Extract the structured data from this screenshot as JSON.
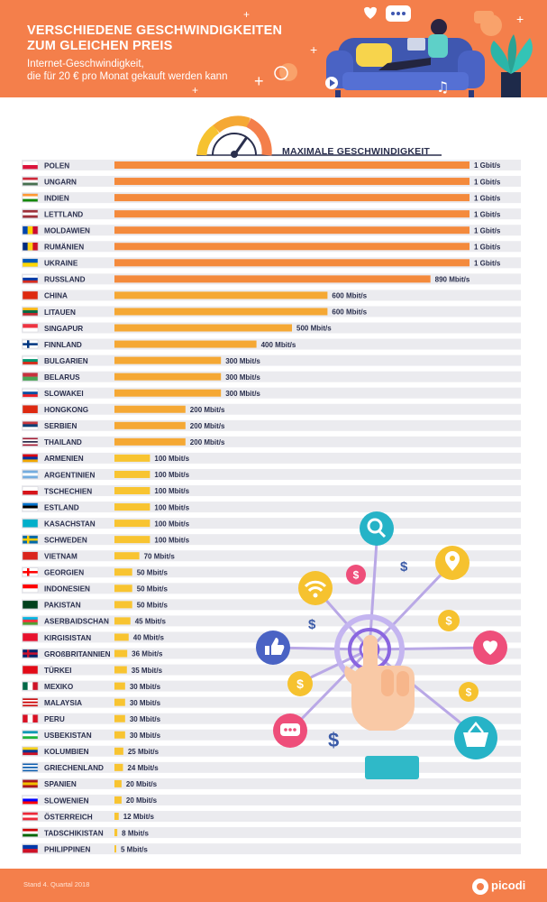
{
  "header": {
    "title_line1": "VERSCHIEDENE GESCHWINDIGKEITEN",
    "title_line2": "ZUM GLEICHEN PREIS",
    "subtitle_line1": "Internet-Geschwindigkeit,",
    "subtitle_line2": "die für 20 € pro Monat gekauft werden kann"
  },
  "colors": {
    "header_bg": "#f47f4b",
    "bar_orange": "#f48a3c",
    "bar_mid": "#f5a834",
    "bar_yellow": "#f8c431",
    "row_bg": "#ebebef"
  },
  "chart_data": {
    "type": "bar",
    "orientation": "horizontal",
    "title": "MAXIMALE GESCHWINDIGKEIT",
    "unit": "Mbit/s",
    "xlim": [
      0,
      1000
    ],
    "rows": [
      {
        "country": "POLEN",
        "value": 1000,
        "label": "1 Gbit/s",
        "flag": [
          "#ffffff",
          "#dc143c"
        ]
      },
      {
        "country": "UNGARN",
        "value": 1000,
        "label": "1 Gbit/s",
        "flag": [
          "#ce2939",
          "#ffffff",
          "#477050"
        ]
      },
      {
        "country": "INDIEN",
        "value": 1000,
        "label": "1 Gbit/s",
        "flag": [
          "#ff9933",
          "#ffffff",
          "#138808"
        ]
      },
      {
        "country": "LETTLAND",
        "value": 1000,
        "label": "1 Gbit/s",
        "flag": [
          "#9e3039",
          "#ffffff",
          "#9e3039"
        ]
      },
      {
        "country": "MOLDAWIEN",
        "value": 1000,
        "label": "1 Gbit/s",
        "flag": [
          "#0046ae",
          "#ffd200",
          "#cc092f"
        ],
        "vertical": true
      },
      {
        "country": "RUMÄNIEN",
        "value": 1000,
        "label": "1 Gbit/s",
        "flag": [
          "#002b7f",
          "#fcd116",
          "#ce1126"
        ],
        "vertical": true
      },
      {
        "country": "UKRAINE",
        "value": 1000,
        "label": "1 Gbit/s",
        "flag": [
          "#0057b7",
          "#ffd700"
        ]
      },
      {
        "country": "RUSSLAND",
        "value": 890,
        "label": "890 Mbit/s",
        "flag": [
          "#ffffff",
          "#0039a6",
          "#d52b1e"
        ]
      },
      {
        "country": "CHINA",
        "value": 600,
        "label": "600 Mbit/s",
        "flag": [
          "#de2910"
        ]
      },
      {
        "country": "LITAUEN",
        "value": 600,
        "label": "600 Mbit/s",
        "flag": [
          "#fdb913",
          "#006a44",
          "#c1272d"
        ]
      },
      {
        "country": "SINGAPUR",
        "value": 500,
        "label": "500 Mbit/s",
        "flag": [
          "#ef3340",
          "#ffffff"
        ]
      },
      {
        "country": "FINNLAND",
        "value": 400,
        "label": "400 Mbit/s",
        "flag": [
          "#ffffff"
        ],
        "cross": "#003580"
      },
      {
        "country": "BULGARIEN",
        "value": 300,
        "label": "300 Mbit/s",
        "flag": [
          "#ffffff",
          "#00966e",
          "#d62612"
        ]
      },
      {
        "country": "BELARUS",
        "value": 300,
        "label": "300 Mbit/s",
        "flag": [
          "#c8313e",
          "#4aa657"
        ]
      },
      {
        "country": "SLOWAKEI",
        "value": 300,
        "label": "300 Mbit/s",
        "flag": [
          "#ffffff",
          "#0b4ea2",
          "#ee1c25"
        ]
      },
      {
        "country": "HONGKONG",
        "value": 200,
        "label": "200 Mbit/s",
        "flag": [
          "#de2910"
        ]
      },
      {
        "country": "SERBIEN",
        "value": 200,
        "label": "200 Mbit/s",
        "flag": [
          "#c6363c",
          "#0c4076",
          "#ffffff"
        ]
      },
      {
        "country": "THAILAND",
        "value": 200,
        "label": "200 Mbit/s",
        "flag": [
          "#a51931",
          "#ffffff",
          "#2d2a4a",
          "#ffffff",
          "#a51931"
        ]
      },
      {
        "country": "ARMENIEN",
        "value": 100,
        "label": "100 Mbit/s",
        "flag": [
          "#d90012",
          "#0033a0",
          "#f2a800"
        ]
      },
      {
        "country": "ARGENTINIEN",
        "value": 100,
        "label": "100 Mbit/s",
        "flag": [
          "#74acdf",
          "#ffffff",
          "#74acdf"
        ]
      },
      {
        "country": "TSCHECHIEN",
        "value": 100,
        "label": "100 Mbit/s",
        "flag": [
          "#ffffff",
          "#d7141a"
        ]
      },
      {
        "country": "ESTLAND",
        "value": 100,
        "label": "100 Mbit/s",
        "flag": [
          "#0072ce",
          "#000000",
          "#ffffff"
        ]
      },
      {
        "country": "KASACHSTAN",
        "value": 100,
        "label": "100 Mbit/s",
        "flag": [
          "#00afca"
        ]
      },
      {
        "country": "SCHWEDEN",
        "value": 100,
        "label": "100 Mbit/s",
        "flag": [
          "#006aa7"
        ],
        "cross": "#fecc00"
      },
      {
        "country": "VIETNAM",
        "value": 70,
        "label": "70 Mbit/s",
        "flag": [
          "#da251d"
        ]
      },
      {
        "country": "GEORGIEN",
        "value": 50,
        "label": "50 Mbit/s",
        "flag": [
          "#ffffff"
        ],
        "cross": "#ff0000"
      },
      {
        "country": "INDONESIEN",
        "value": 50,
        "label": "50 Mbit/s",
        "flag": [
          "#ff0000",
          "#ffffff"
        ]
      },
      {
        "country": "PAKISTAN",
        "value": 50,
        "label": "50 Mbit/s",
        "flag": [
          "#01411c"
        ]
      },
      {
        "country": "ASERBAIDSCHAN",
        "value": 45,
        "label": "45 Mbit/s",
        "flag": [
          "#00b5e2",
          "#ef3340",
          "#509e2f"
        ]
      },
      {
        "country": "KIRGISISTAN",
        "value": 40,
        "label": "40 Mbit/s",
        "flag": [
          "#e8112d"
        ]
      },
      {
        "country": "GROßBRITANNIEN",
        "value": 36,
        "label": "36 Mbit/s",
        "flag": [
          "#012169"
        ],
        "cross": "#c8102e"
      },
      {
        "country": "TÜRKEI",
        "value": 35,
        "label": "35 Mbit/s",
        "flag": [
          "#e30a17"
        ]
      },
      {
        "country": "MEXIKO",
        "value": 30,
        "label": "30 Mbit/s",
        "flag": [
          "#006847",
          "#ffffff",
          "#ce1126"
        ],
        "vertical": true
      },
      {
        "country": "MALAYSIA",
        "value": 30,
        "label": "30 Mbit/s",
        "flag": [
          "#cc0001",
          "#ffffff",
          "#cc0001",
          "#ffffff",
          "#cc0001"
        ]
      },
      {
        "country": "PERU",
        "value": 30,
        "label": "30 Mbit/s",
        "flag": [
          "#d91023",
          "#ffffff",
          "#d91023"
        ],
        "vertical": true
      },
      {
        "country": "USBEKISTAN",
        "value": 30,
        "label": "30 Mbit/s",
        "flag": [
          "#0099b5",
          "#ffffff",
          "#1eb53a"
        ]
      },
      {
        "country": "KOLUMBIEN",
        "value": 25,
        "label": "25 Mbit/s",
        "flag": [
          "#fcd116",
          "#003893",
          "#ce1126"
        ]
      },
      {
        "country": "GRIECHENLAND",
        "value": 24,
        "label": "24 Mbit/s",
        "flag": [
          "#0d5eaf",
          "#ffffff",
          "#0d5eaf",
          "#ffffff",
          "#0d5eaf"
        ]
      },
      {
        "country": "SPANIEN",
        "value": 20,
        "label": "20 Mbit/s",
        "flag": [
          "#aa151b",
          "#f1bf00",
          "#aa151b"
        ]
      },
      {
        "country": "SLOWENIEN",
        "value": 20,
        "label": "20 Mbit/s",
        "flag": [
          "#ffffff",
          "#0000ff",
          "#ff0000"
        ]
      },
      {
        "country": "ÖSTERREICH",
        "value": 12,
        "label": "12 Mbit/s",
        "flag": [
          "#ed2939",
          "#ffffff",
          "#ed2939"
        ]
      },
      {
        "country": "TADSCHIKISTAN",
        "value": 8,
        "label": "8 Mbit/s",
        "flag": [
          "#cc0000",
          "#ffffff",
          "#006600"
        ]
      },
      {
        "country": "PHILIPPINEN",
        "value": 5,
        "label": "5 Mbit/s",
        "flag": [
          "#0038a8",
          "#ce1126"
        ]
      }
    ]
  },
  "footer": {
    "note": "Stand 4. Quartal 2018",
    "brand": "picodi"
  }
}
